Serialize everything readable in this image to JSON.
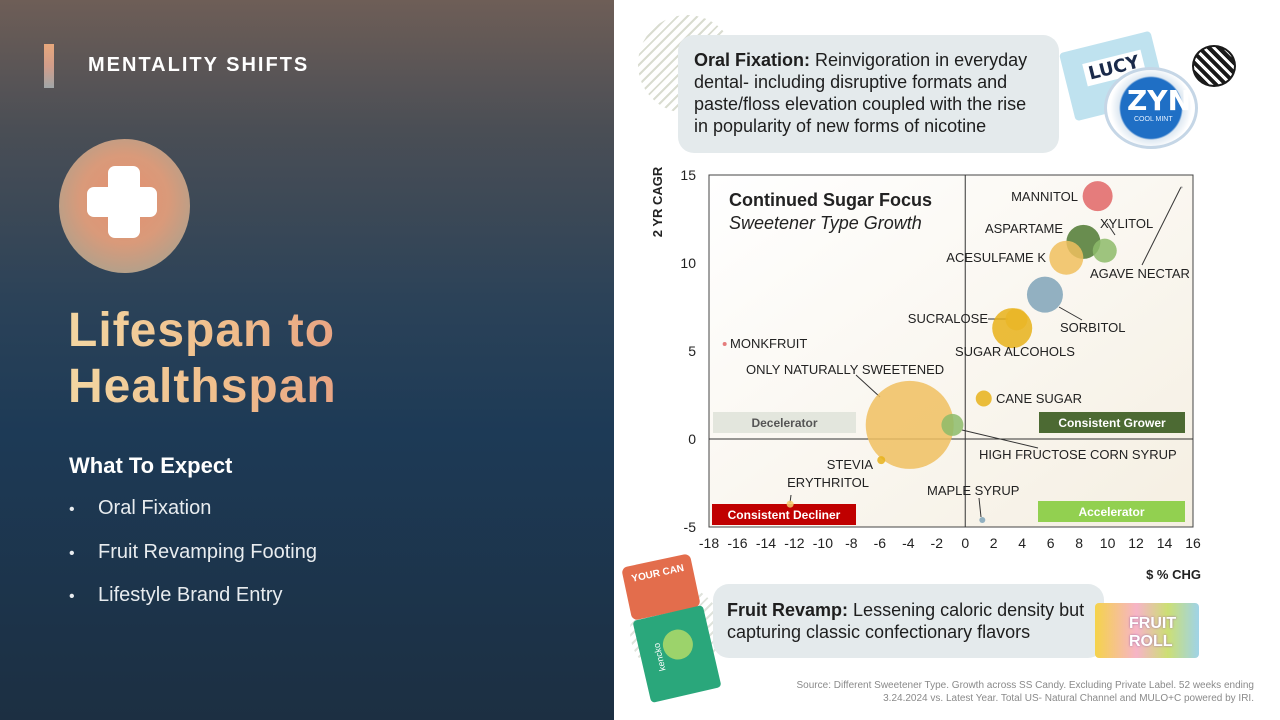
{
  "left_panel": {
    "section_label": "MENTALITY SHIFTS",
    "icon": "plus-icon",
    "headline_line1": "Lifespan to",
    "headline_line2": "Healthspan",
    "expect_title": "What To Expect",
    "bullets": [
      "Oral Fixation",
      "Fruit Revamping Footing",
      "Lifestyle Brand Entry"
    ]
  },
  "callouts": {
    "top_bold": "Oral Fixation:",
    "top_text": "Reinvigoration in everyday dental- including disruptive formats and paste/floss elevation coupled with the rise in popularity of new forms of nicotine",
    "bottom_bold": "Fruit Revamp:",
    "bottom_text": "Lessening caloric density but capturing classic confectionary flavors"
  },
  "products": {
    "lucy_brand": "LUCY",
    "zyn_brand": "ZYN",
    "zyn_sub": "COOL MINT",
    "bag1_text": "YOUR CAN",
    "kencko_text": "kencko",
    "fruit_text": "FRUIT ROLL"
  },
  "source_note": "Source: Different Sweetener Type. Growth across SS Candy. Excluding Private Label. 52 weeks ending 3.24.2024 vs. Latest Year.  Total US- Natural Channel and MULO+C powered by IRI.",
  "chart_data": {
    "type": "scatter",
    "title": "Continued Sugar Focus",
    "subtitle": "Sweetener Type Growth",
    "xlabel": "$ % CHG",
    "ylabel": "2 YR CAGR",
    "xlim": [
      -18,
      16
    ],
    "ylim": [
      -5,
      15
    ],
    "xticks": [
      -18,
      -16,
      -14,
      -12,
      -10,
      -8,
      -6,
      -4,
      -2,
      0,
      2,
      4,
      6,
      8,
      10,
      12,
      14,
      16
    ],
    "yticks": [
      -5,
      0,
      5,
      10,
      15
    ],
    "quadrant_labels": [
      {
        "text": "Decelerator",
        "color": "#e3e6dd",
        "text_color": "#555555"
      },
      {
        "text": "Consistent Grower",
        "color": "#4c6a33",
        "text_color": "#ffffff"
      },
      {
        "text": "Consistent Decliner",
        "color": "#c00000",
        "text_color": "#ffffff"
      },
      {
        "text": "Accelerator",
        "color": "#92d050",
        "text_color": "#ffffff"
      }
    ],
    "points": [
      {
        "name": "MANNITOL",
        "x": 9.3,
        "y": 13.8,
        "size": 30,
        "color": "#e06666"
      },
      {
        "name": "ASPARTAME",
        "x": 8.3,
        "y": 11.2,
        "size": 34,
        "color": "#4f7a33"
      },
      {
        "name": "XYLITOL",
        "x": 9.8,
        "y": 10.7,
        "size": 24,
        "color": "#8dbb6a"
      },
      {
        "name": "ACESULFAME K",
        "x": 7.1,
        "y": 10.3,
        "size": 34,
        "color": "#f0c05e"
      },
      {
        "name": "AGAVE NECTAR",
        "x": 15.2,
        "y": 14.3,
        "size": 2,
        "color": "#999999"
      },
      {
        "name": "SORBITOL",
        "x": 5.6,
        "y": 8.2,
        "size": 36,
        "color": "#7fa3b8"
      },
      {
        "name": "SUCRALOSE",
        "x": 3.6,
        "y": 6.8,
        "size": 22,
        "color": "#f2cd6b"
      },
      {
        "name": "SUGAR ALCOHOLS",
        "x": 3.3,
        "y": 6.3,
        "size": 40,
        "color": "#e8b11a"
      },
      {
        "name": "MONKFRUIT",
        "x": -16.9,
        "y": 5.4,
        "size": 4,
        "color": "#e06666"
      },
      {
        "name": "ONLY NATURALLY SWEETENED",
        "x": -3.9,
        "y": 0.8,
        "size": 88,
        "color": "#f0c060"
      },
      {
        "name": "CANE SUGAR",
        "x": 1.3,
        "y": 2.3,
        "size": 16,
        "color": "#e8b11a"
      },
      {
        "name": "HIGH FRUCTOSE CORN SYRUP",
        "x": -0.9,
        "y": 0.8,
        "size": 22,
        "color": "#8dbb6a"
      },
      {
        "name": "STEVIA",
        "x": -5.9,
        "y": -1.2,
        "size": 8,
        "color": "#e8b11a"
      },
      {
        "name": "ERYTHRITOL",
        "x": -12.3,
        "y": -3.7,
        "size": 7,
        "color": "#f2cd6b"
      },
      {
        "name": "MAPLE SYRUP",
        "x": 1.2,
        "y": -4.6,
        "size": 6,
        "color": "#7fa3b8"
      }
    ]
  }
}
